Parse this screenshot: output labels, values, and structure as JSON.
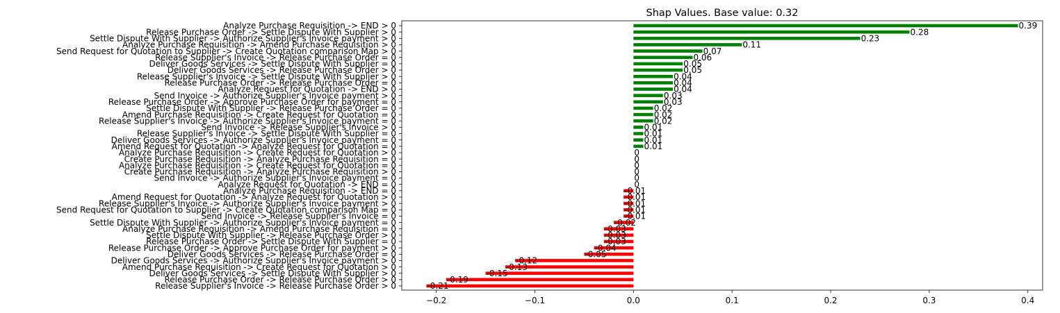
{
  "chart_data": {
    "type": "bar",
    "orientation": "horizontal",
    "title": "Shap Values. Base value: 0.32",
    "xlabel": "",
    "ylabel": "",
    "xlim": [
      -0.235,
      0.415
    ],
    "xticks": [
      -0.2,
      -0.1,
      0.0,
      0.1,
      0.2,
      0.3,
      0.4
    ],
    "xtick_labels": [
      "−0.2",
      "−0.1",
      "0.0",
      "0.1",
      "0.2",
      "0.3",
      "0.4"
    ],
    "grid": false,
    "positive_color": "#008000",
    "negative_color": "#ff0000",
    "categories": [
      "Analyze Purchase Requisition -> END > 0",
      "Release Purchase Order -> Settle Dispute With Supplier > 0",
      "Settle Dispute With Supplier -> Authorize Supplier's Invoice payment > 0",
      "Analyze Purchase Requisition -> Amend Purchase Requisition > 0",
      "Send Request for Quotation to Supplier -> Create Quotation comparison Map > 0",
      "Release Supplier's Invoice -> Release Purchase Order = 0",
      "Deliver Goods Services -> Settle Dispute With Supplier = 0",
      "Deliver Goods Services -> Release Purchase Order > 0",
      "Release Supplier's Invoice -> Settle Dispute With Supplier > 0",
      "Release Purchase Order -> Release Purchase Order = 0",
      "Analyze Request for Quotation -> END > 0",
      "Send Invoice -> Authorize Supplier's Invoice payment > 0",
      "Release Purchase Order -> Approve Purchase Order for payment = 0",
      "Settle Dispute With Supplier -> Release Purchase Order = 0",
      "Amend Purchase Requisition -> Create Request for Quotation = 0",
      "Release Supplier's Invoice -> Authorize Supplier's Invoice payment = 0",
      "Send Invoice -> Release Supplier's Invoice > 0",
      "Release Supplier's Invoice -> Settle Dispute With Supplier = 0",
      "Deliver Goods Services -> Authorize Supplier's Invoice payment = 0",
      "Amend Request for Quotation -> Analyze Request for Quotation = 0",
      "Analyze Purchase Requisition -> Create Request for Quotation > 0",
      "Create Purchase Requisition -> Analyze Purchase Requisition = 0",
      "Analyze Purchase Requisition -> Create Request for Quotation = 0",
      "Create Purchase Requisition -> Analyze Purchase Requisition > 0",
      "Send Invoice -> Authorize Supplier's Invoice payment = 0",
      "Analyze Request for Quotation -> END = 0",
      "Analyze Purchase Requisition -> END = 0",
      "Amend Request for Quotation -> Analyze Request for Quotation > 0",
      "Release Supplier's Invoice -> Authorize Supplier's Invoice payment > 0",
      "Send Request for Quotation to Supplier -> Create Quotation comparison Map = 0",
      "Send Invoice -> Release Supplier's Invoice = 0",
      "Settle Dispute With Supplier -> Authorize Supplier's Invoice payment = 0",
      "Analyze Purchase Requisition -> Amend Purchase Requisition = 0",
      "Settle Dispute With Supplier -> Release Purchase Order > 0",
      "Release Purchase Order -> Settle Dispute With Supplier = 0",
      "Release Purchase Order -> Approve Purchase Order for payment > 0",
      "Deliver Goods Services -> Release Purchase Order = 0",
      "Deliver Goods Services -> Authorize Supplier's Invoice payment > 0",
      "Amend Purchase Requisition -> Create Request for Quotation > 0",
      "Deliver Goods Services -> Settle Dispute With Supplier > 0",
      "Release Purchase Order -> Release Purchase Order > 0",
      "Release Supplier's Invoice -> Release Purchase Order > 0"
    ],
    "values": [
      0.39,
      0.28,
      0.23,
      0.11,
      0.07,
      0.06,
      0.05,
      0.05,
      0.04,
      0.04,
      0.04,
      0.03,
      0.03,
      0.02,
      0.02,
      0.02,
      0.01,
      0.01,
      0.01,
      0.01,
      0,
      0,
      0,
      0,
      0,
      0,
      -0.01,
      -0.01,
      -0.01,
      -0.01,
      -0.01,
      -0.02,
      -0.03,
      -0.03,
      -0.03,
      -0.04,
      -0.05,
      -0.12,
      -0.13,
      -0.15,
      -0.19,
      -0.21
    ],
    "data_labels": [
      "0.39",
      "0.28",
      "0.23",
      "0.11",
      "0.07",
      "0.06",
      "0.05",
      "0.05",
      "0.04",
      "0.04",
      "0.04",
      "0.03",
      "0.03",
      "0.02",
      "0.02",
      "0.02",
      "0.01",
      "0.01",
      "0.01",
      "0.01",
      "0",
      "0",
      "0",
      "0",
      "0",
      "0",
      "-0.01",
      "-0.01",
      "-0.01",
      "-0.01",
      "-0.01",
      "-0.02",
      "-0.03",
      "-0.03",
      "-0.03",
      "-0.04",
      "-0.05",
      "-0.12",
      "-0.13",
      "-0.15",
      "-0.19",
      "-0.21"
    ]
  }
}
